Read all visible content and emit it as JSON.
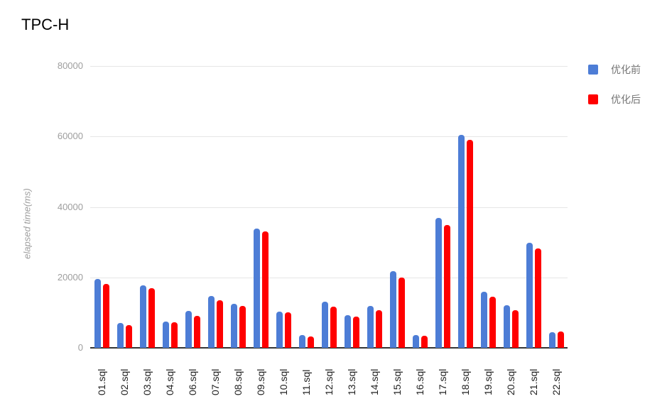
{
  "title": "TPC-H",
  "legend": {
    "items": [
      {
        "label": "优化前",
        "color": "#4d7dd6"
      },
      {
        "label": "优化后",
        "color": "#ff0000"
      }
    ]
  },
  "chart_data": {
    "type": "bar",
    "title": "TPC-H",
    "categories": [
      "01.sql",
      "02.sql",
      "03.sql",
      "04.sql",
      "06.sql",
      "07.sql",
      "08.sql",
      "09.sql",
      "10.sql",
      "11.sql",
      "12.sql",
      "13.sql",
      "14.sql",
      "15.sql",
      "16.sql",
      "17.sql",
      "18.sql",
      "19.sql",
      "20.sql",
      "21.sql",
      "22.sql"
    ],
    "series": [
      {
        "name": "优化前",
        "color": "#4d7dd6",
        "values": [
          19600,
          7100,
          17700,
          7500,
          10400,
          14700,
          12500,
          33800,
          10200,
          3700,
          13100,
          9200,
          11900,
          21700,
          3600,
          36800,
          60400,
          15900,
          12100,
          29900,
          4500
        ]
      },
      {
        "name": "优化后",
        "color": "#ff0000",
        "values": [
          18100,
          6500,
          16900,
          7200,
          9000,
          13500,
          11900,
          33100,
          10100,
          3300,
          11600,
          8800,
          10700,
          19900,
          3400,
          34800,
          59100,
          14600,
          10700,
          28200,
          4600
        ]
      }
    ],
    "xlabel": "",
    "ylabel": "elapsed time(ms)",
    "ylim": [
      0,
      80000
    ],
    "yticks": [
      0,
      20000,
      40000,
      60000,
      80000
    ],
    "grid": true,
    "legend_position": "top-right",
    "axis_text_color": "#9e9e9e",
    "gridline_color": "#e6e6e6",
    "baseline_color": "#333333"
  }
}
